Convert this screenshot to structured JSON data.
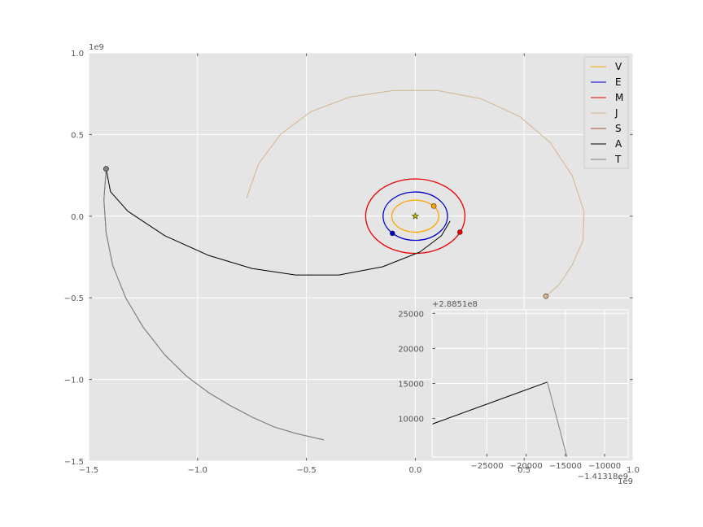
{
  "chart_data": [
    {
      "type": "line",
      "title": "",
      "xlabel": "",
      "ylabel": "",
      "xlim": [
        -1.5,
        1.0
      ],
      "ylim": [
        -1.5,
        1.0
      ],
      "x_ticks": [
        -1.5,
        -1.0,
        -0.5,
        0.0,
        0.5,
        1.0
      ],
      "x_tick_labels": [
        "−1.5",
        "−1.0",
        "−0.5",
        "0.0",
        "0.5",
        "1.0"
      ],
      "y_ticks": [
        -1.5,
        -1.0,
        -0.5,
        0.0,
        0.5,
        1.0
      ],
      "y_tick_labels": [
        "−1.5",
        "−1.0",
        "−0.5",
        "0.0",
        "0.5",
        "1.0"
      ],
      "x_offset_label": "1e9",
      "y_offset_label": "1e9",
      "grid": true,
      "legend_position": "top-right",
      "center_marker": {
        "x": 0.0,
        "y": 0.0,
        "symbol": "star"
      },
      "series": [
        {
          "name": "V",
          "color": "#ffa500",
          "kind": "ellipse",
          "center": [
            0.0,
            0.0
          ],
          "rx": 0.108,
          "ry": 0.098,
          "marker": [
            0.085,
            0.062
          ]
        },
        {
          "name": "E",
          "color": "#0000cc",
          "kind": "ellipse",
          "center": [
            0.0,
            0.0
          ],
          "rx": 0.148,
          "ry": 0.148,
          "marker": [
            -0.105,
            -0.105
          ]
        },
        {
          "name": "M",
          "color": "#ee0000",
          "kind": "ellipse",
          "center": [
            0.0,
            0.0
          ],
          "rx": 0.228,
          "ry": 0.228,
          "marker": [
            0.205,
            -0.098
          ]
        },
        {
          "name": "J",
          "color": "#d2b48c",
          "kind": "path",
          "x": [
            -0.775,
            -0.72,
            -0.62,
            -0.48,
            -0.3,
            -0.1,
            0.1,
            0.3,
            0.48,
            0.62,
            0.72,
            0.775,
            0.77,
            0.72,
            0.66,
            0.6
          ],
          "y": [
            0.11,
            0.32,
            0.5,
            0.64,
            0.73,
            0.77,
            0.77,
            0.72,
            0.61,
            0.45,
            0.25,
            0.03,
            -0.15,
            -0.3,
            -0.42,
            -0.49
          ],
          "marker": [
            0.6,
            -0.49
          ]
        },
        {
          "name": "S",
          "color": "#a0522d",
          "kind": "path",
          "x": [
            -1.42,
            -1.43,
            -1.42,
            -1.39,
            -1.33,
            -1.25,
            -1.15,
            -1.05,
            -0.95,
            -0.85,
            -0.75,
            -0.65,
            -0.55,
            -0.42
          ],
          "y": [
            0.28,
            0.1,
            -0.1,
            -0.3,
            -0.5,
            -0.68,
            -0.85,
            -0.98,
            -1.08,
            -1.16,
            -1.23,
            -1.29,
            -1.33,
            -1.37
          ],
          "marker": [
            -1.42,
            0.29
          ]
        },
        {
          "name": "A",
          "color": "#000000",
          "kind": "path",
          "x": [
            -1.42,
            -1.4,
            -1.32,
            -1.15,
            -0.95,
            -0.75,
            -0.55,
            -0.35,
            -0.15,
            0.02,
            0.12,
            0.16
          ],
          "y": [
            0.29,
            0.15,
            0.03,
            -0.12,
            -0.24,
            -0.32,
            -0.36,
            -0.36,
            -0.31,
            -0.22,
            -0.12,
            -0.03
          ],
          "marker": [
            -1.42,
            0.29
          ]
        },
        {
          "name": "T",
          "color": "#808080",
          "kind": "path",
          "x": [
            -1.42,
            -1.43,
            -1.42,
            -1.39,
            -1.33,
            -1.25,
            -1.15,
            -1.05,
            -0.95,
            -0.85,
            -0.75,
            -0.65,
            -0.55,
            -0.42
          ],
          "y": [
            0.28,
            0.1,
            -0.1,
            -0.3,
            -0.5,
            -0.68,
            -0.85,
            -0.98,
            -1.08,
            -1.16,
            -1.23,
            -1.29,
            -1.33,
            -1.37
          ],
          "marker": [
            -1.42,
            0.29
          ]
        }
      ]
    },
    {
      "type": "line",
      "title": "",
      "xlabel": "",
      "ylabel": "",
      "xlim": [
        -32000,
        -7000
      ],
      "ylim": [
        4500,
        25500
      ],
      "x_ticks": [
        -25000,
        -20000,
        -15000,
        -10000
      ],
      "x_tick_labels": [
        "−25000",
        "−20000",
        "−15000",
        "−10000"
      ],
      "y_ticks": [
        10000,
        15000,
        20000,
        25000
      ],
      "y_tick_labels": [
        "10000",
        "15000",
        "20000",
        "25000"
      ],
      "x_offset_label": "−1.41318e9",
      "y_offset_label": "+2.8851e8",
      "grid": true,
      "series": [
        {
          "name": "A",
          "color": "#000000",
          "x": [
            -32000,
            -17300
          ],
          "y": [
            9200,
            15200
          ]
        },
        {
          "name": "T",
          "color": "#808080",
          "x": [
            -17300,
            -14800
          ],
          "y": [
            15200,
            4500
          ]
        }
      ]
    }
  ]
}
